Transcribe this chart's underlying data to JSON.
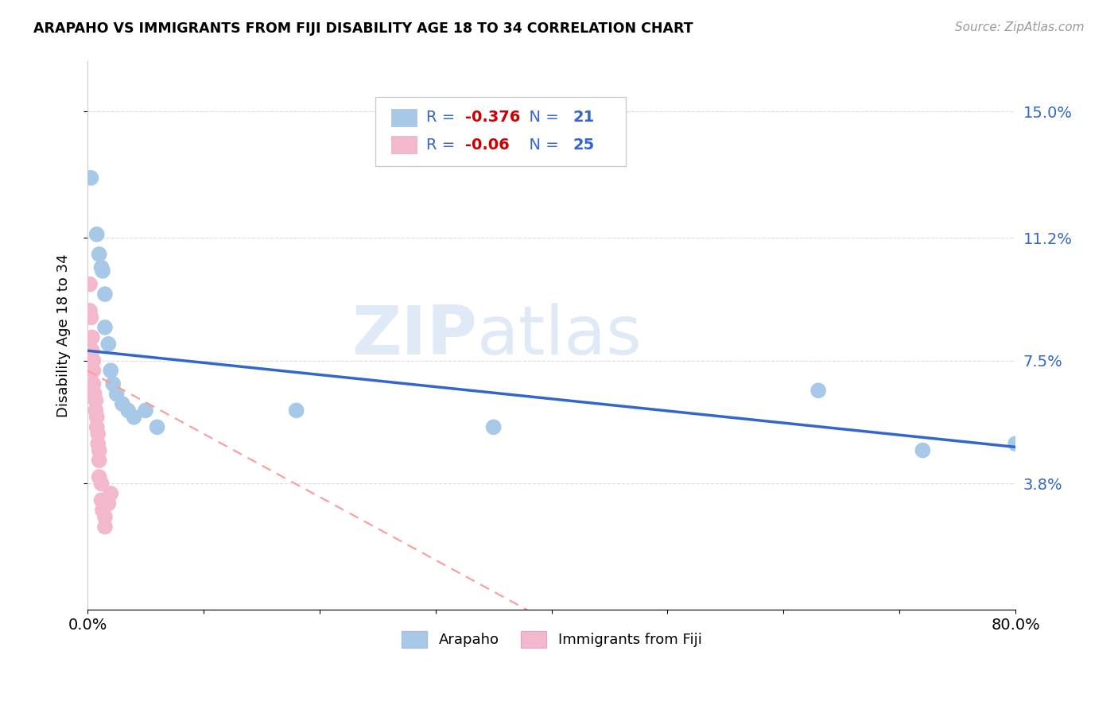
{
  "title": "ARAPAHO VS IMMIGRANTS FROM FIJI DISABILITY AGE 18 TO 34 CORRELATION CHART",
  "source": "Source: ZipAtlas.com",
  "ylabel": "Disability Age 18 to 34",
  "xlim": [
    0.0,
    0.8
  ],
  "ylim": [
    0.0,
    0.165
  ],
  "xticks": [
    0.0,
    0.1,
    0.2,
    0.3,
    0.4,
    0.5,
    0.6,
    0.7,
    0.8
  ],
  "xticklabels_ends": [
    "0.0%",
    "80.0%"
  ],
  "yticks": [
    0.038,
    0.075,
    0.112,
    0.15
  ],
  "yticklabels": [
    "3.8%",
    "7.5%",
    "11.2%",
    "15.0%"
  ],
  "arapaho_color": "#A8C8E8",
  "fiji_color": "#F4B8CC",
  "trend_arapaho_color": "#3366CC",
  "trend_fiji_color": "#FF9999",
  "arapaho_R": -0.376,
  "arapaho_N": 21,
  "fiji_R": -0.06,
  "fiji_N": 25,
  "arapaho_x": [
    0.003,
    0.008,
    0.01,
    0.012,
    0.013,
    0.015,
    0.015,
    0.018,
    0.02,
    0.022,
    0.025,
    0.03,
    0.035,
    0.04,
    0.05,
    0.06,
    0.18,
    0.35,
    0.63,
    0.72,
    0.8
  ],
  "arapaho_y": [
    0.13,
    0.113,
    0.107,
    0.103,
    0.102,
    0.095,
    0.085,
    0.08,
    0.072,
    0.068,
    0.065,
    0.062,
    0.06,
    0.058,
    0.06,
    0.055,
    0.06,
    0.055,
    0.066,
    0.048,
    0.05
  ],
  "fiji_x": [
    0.002,
    0.002,
    0.003,
    0.004,
    0.004,
    0.005,
    0.005,
    0.005,
    0.006,
    0.007,
    0.007,
    0.008,
    0.008,
    0.009,
    0.009,
    0.01,
    0.01,
    0.01,
    0.012,
    0.012,
    0.013,
    0.015,
    0.015,
    0.018,
    0.02
  ],
  "fiji_y": [
    0.098,
    0.09,
    0.088,
    0.082,
    0.078,
    0.075,
    0.072,
    0.068,
    0.065,
    0.063,
    0.06,
    0.058,
    0.055,
    0.053,
    0.05,
    0.048,
    0.045,
    0.04,
    0.038,
    0.033,
    0.03,
    0.028,
    0.025,
    0.032,
    0.035
  ],
  "watermark_zip": "ZIP",
  "watermark_atlas": "atlas",
  "background_color": "#FFFFFF",
  "grid_color": "#DDDDDD",
  "legend_color": "#3366CC",
  "legend_r_color": "#CC0000"
}
